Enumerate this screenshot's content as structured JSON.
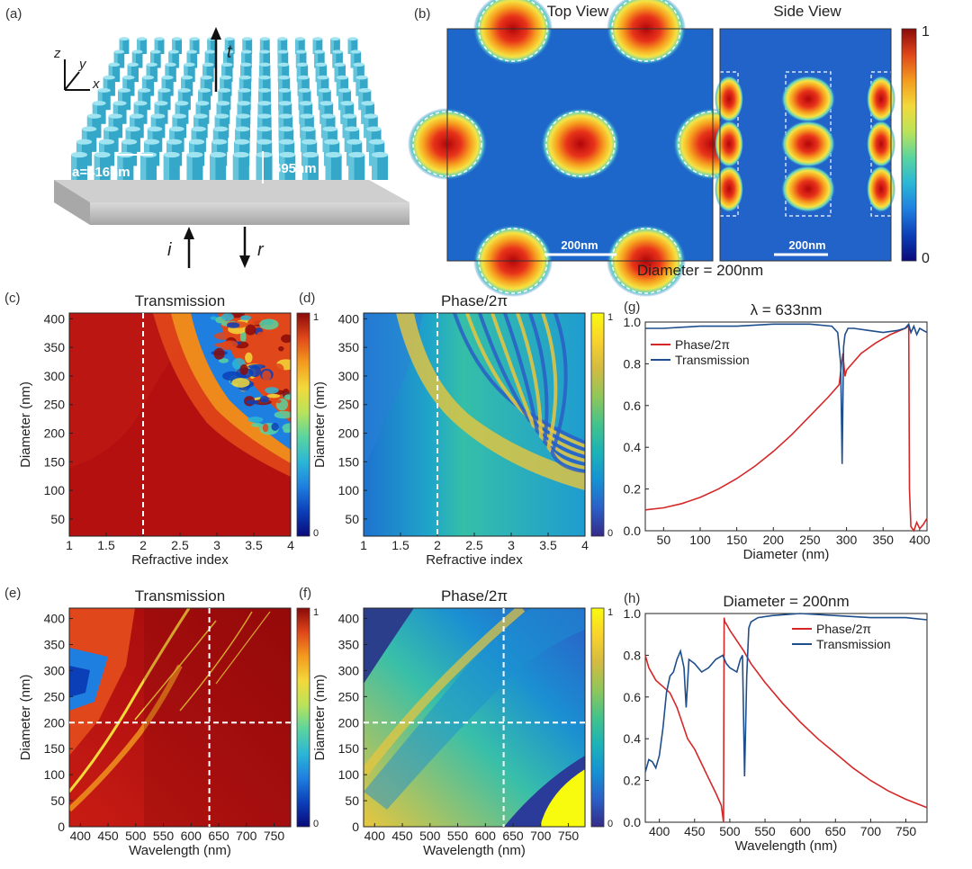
{
  "colors": {
    "phase_red": "#d62728",
    "transmission_blue": "#1f4e8c",
    "colormap": [
      "#0a0a7a",
      "#0b3fb8",
      "#1f7fe0",
      "#2bb6d6",
      "#59d4a0",
      "#b9e35a",
      "#f3d93a",
      "#f39b1e",
      "#e0471a",
      "#8a0a0a"
    ],
    "colormap_phase": [
      "#352a87",
      "#2b5fc8",
      "#1591d4",
      "#1bb3b8",
      "#43c38b",
      "#8fc65a",
      "#d2bb42",
      "#f9d22c",
      "#f9fb0e"
    ]
  },
  "panel_a": {
    "label": "(a)",
    "axes": {
      "z": "z",
      "y": "y",
      "x": "x"
    },
    "lattice_label": "a=416nm",
    "height_label": "695nm",
    "beam_t": "t",
    "beam_i": "i",
    "beam_r": "r"
  },
  "panel_b": {
    "label": "(b)",
    "top_view_title": "Top View",
    "side_view_title": "Side View",
    "scale_label_top": "200nm",
    "scale_label_side": "200nm",
    "caption": "Diameter = 200nm",
    "colorbar_max": "1",
    "colorbar_min": "0"
  },
  "chart_data": [
    {
      "id": "c",
      "type": "heatmap",
      "label": "(c)",
      "title": "Transmission",
      "xlabel": "Refractive index",
      "ylabel": "Diameter (nm)",
      "xlim": [
        1,
        4
      ],
      "ylim": [
        20,
        410
      ],
      "xticks": [
        "1",
        "1.5",
        "2",
        "2.5",
        "3",
        "3.5",
        "4"
      ],
      "yticks": [
        "50",
        "100",
        "150",
        "200",
        "250",
        "300",
        "350",
        "400"
      ],
      "colorbar": [
        "1",
        "0"
      ],
      "dashed_x": 2
    },
    {
      "id": "d",
      "type": "heatmap",
      "label": "(d)",
      "title": "Phase/2π",
      "xlabel": "Refractive index",
      "ylabel": "Diameter (nm)",
      "xlim": [
        1,
        4
      ],
      "ylim": [
        20,
        410
      ],
      "xticks": [
        "1",
        "1.5",
        "2",
        "2.5",
        "3",
        "3.5",
        "4"
      ],
      "yticks": [
        "50",
        "100",
        "150",
        "200",
        "250",
        "300",
        "350",
        "400"
      ],
      "colorbar": [
        "1",
        "0"
      ],
      "dashed_x": 2
    },
    {
      "id": "g",
      "type": "line",
      "label": "(g)",
      "title": "λ = 633nm",
      "xlabel": "Diameter (nm)",
      "ylabel": "",
      "xlim": [
        25,
        410
      ],
      "ylim": [
        0,
        1
      ],
      "xticks": [
        "50",
        "100",
        "150",
        "200",
        "250",
        "300",
        "350",
        "400"
      ],
      "yticks": [
        "0.0",
        "0.2",
        "0.4",
        "0.6",
        "0.8",
        "1.0"
      ],
      "legend_position": "top-left",
      "series": [
        {
          "name": "Phase/2π",
          "color": "#d62728",
          "x": [
            25,
            50,
            75,
            100,
            125,
            150,
            175,
            200,
            225,
            250,
            275,
            290,
            295,
            298,
            300,
            320,
            340,
            360,
            380,
            385,
            386,
            388,
            392,
            396,
            400,
            405,
            410
          ],
          "y": [
            0.1,
            0.11,
            0.13,
            0.16,
            0.2,
            0.25,
            0.31,
            0.38,
            0.46,
            0.55,
            0.64,
            0.7,
            0.85,
            0.74,
            0.77,
            0.85,
            0.9,
            0.94,
            0.97,
            0.98,
            0.2,
            0.02,
            0.0,
            0.04,
            0.01,
            0.03,
            0.06
          ]
        },
        {
          "name": "Transmission",
          "color": "#1f4e8c",
          "x": [
            25,
            50,
            100,
            150,
            200,
            250,
            280,
            288,
            292,
            294,
            296,
            298,
            302,
            310,
            330,
            350,
            370,
            380,
            385,
            388,
            392,
            396,
            400,
            405,
            410
          ],
          "y": [
            0.97,
            0.97,
            0.98,
            0.98,
            0.99,
            0.99,
            0.98,
            0.95,
            0.8,
            0.32,
            0.88,
            0.94,
            0.97,
            0.97,
            0.96,
            0.95,
            0.96,
            0.97,
            0.99,
            0.95,
            0.98,
            0.94,
            0.97,
            0.96,
            0.95
          ]
        }
      ]
    },
    {
      "id": "e",
      "type": "heatmap",
      "label": "(e)",
      "title": "Transmission",
      "xlabel": "Wavelength (nm)",
      "ylabel": "Diameter (nm)",
      "xlim": [
        380,
        780
      ],
      "ylim": [
        0,
        420
      ],
      "xticks": [
        "400",
        "450",
        "500",
        "550",
        "600",
        "650",
        "700",
        "750"
      ],
      "yticks": [
        "0",
        "50",
        "100",
        "150",
        "200",
        "250",
        "300",
        "350",
        "400"
      ],
      "colorbar": [
        "1",
        "0"
      ],
      "dashed_x": 633,
      "dashed_y": 200
    },
    {
      "id": "f",
      "type": "heatmap",
      "label": "(f)",
      "title": "Phase/2π",
      "xlabel": "Wavelength (nm)",
      "ylabel": "Diameter (nm)",
      "xlim": [
        380,
        780
      ],
      "ylim": [
        0,
        420
      ],
      "xticks": [
        "400",
        "450",
        "500",
        "550",
        "600",
        "650",
        "700",
        "750"
      ],
      "yticks": [
        "0",
        "50",
        "100",
        "150",
        "200",
        "250",
        "300",
        "350",
        "400"
      ],
      "colorbar": [
        "1",
        "0"
      ],
      "dashed_x": 633,
      "dashed_y": 200
    },
    {
      "id": "h",
      "type": "line",
      "label": "(h)",
      "title": "Diameter = 200nm",
      "xlabel": "Wavelength (nm)",
      "ylabel": "",
      "xlim": [
        380,
        780
      ],
      "ylim": [
        0,
        1
      ],
      "xticks": [
        "400",
        "450",
        "500",
        "550",
        "600",
        "650",
        "700",
        "750"
      ],
      "yticks": [
        "0.0",
        "0.2",
        "0.4",
        "0.6",
        "0.8",
        "1.0"
      ],
      "legend_position": "top-right",
      "series": [
        {
          "name": "Phase/2π",
          "color": "#d62728",
          "x": [
            380,
            385,
            395,
            405,
            415,
            425,
            440,
            450,
            460,
            470,
            480,
            488,
            491,
            492,
            493,
            495,
            500,
            510,
            520,
            530,
            550,
            575,
            600,
            625,
            650,
            675,
            700,
            725,
            750,
            780
          ],
          "y": [
            0.8,
            0.74,
            0.68,
            0.65,
            0.62,
            0.55,
            0.4,
            0.35,
            0.28,
            0.21,
            0.14,
            0.08,
            0.0,
            0.98,
            0.96,
            0.95,
            0.92,
            0.87,
            0.82,
            0.76,
            0.67,
            0.57,
            0.48,
            0.4,
            0.33,
            0.26,
            0.2,
            0.15,
            0.11,
            0.07
          ]
        },
        {
          "name": "Transmission",
          "color": "#1f4e8c",
          "x": [
            380,
            385,
            390,
            395,
            400,
            405,
            410,
            415,
            420,
            425,
            430,
            435,
            438,
            442,
            450,
            460,
            470,
            480,
            490,
            495,
            500,
            510,
            515,
            518,
            521,
            524,
            527,
            530,
            540,
            560,
            600,
            650,
            700,
            750,
            780
          ],
          "y": [
            0.24,
            0.3,
            0.29,
            0.26,
            0.32,
            0.45,
            0.62,
            0.7,
            0.72,
            0.78,
            0.82,
            0.74,
            0.55,
            0.78,
            0.76,
            0.72,
            0.74,
            0.78,
            0.8,
            0.76,
            0.74,
            0.72,
            0.78,
            0.8,
            0.22,
            0.7,
            0.93,
            0.96,
            0.98,
            0.99,
            1.0,
            0.99,
            0.98,
            0.98,
            0.97
          ]
        }
      ]
    }
  ]
}
